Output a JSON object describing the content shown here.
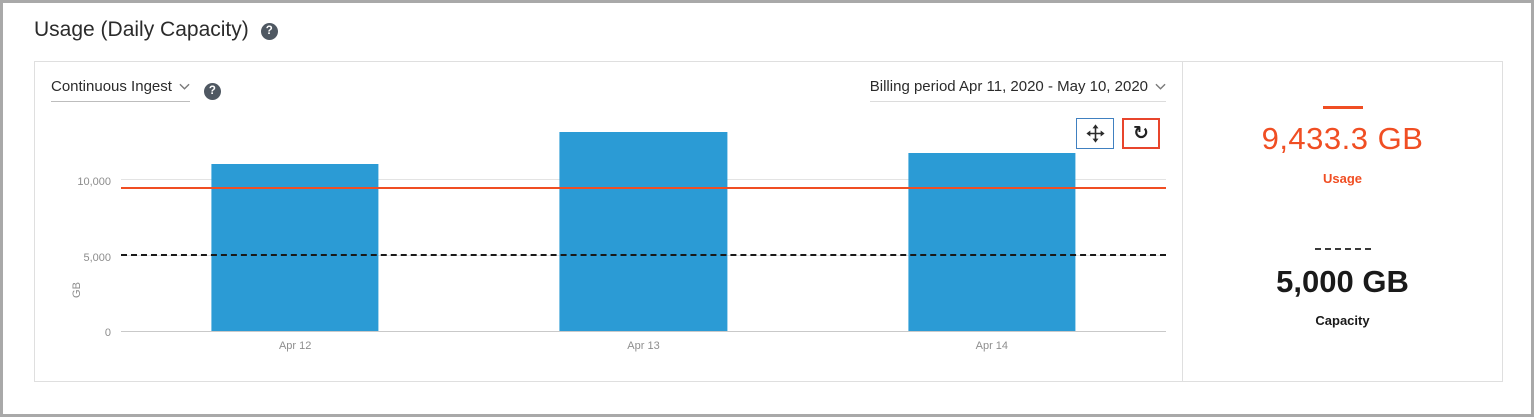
{
  "page": {
    "title": "Usage (Daily Capacity)"
  },
  "chart_panel": {
    "ingest_dropdown": "Continuous Ingest",
    "billing_dropdown": "Billing period Apr 11, 2020 - May 10, 2020"
  },
  "icons": {
    "help": "?",
    "refresh": "↻"
  },
  "summary": {
    "usage_value": "9,433.3 GB",
    "usage_label": "Usage",
    "capacity_value": "5,000 GB",
    "capacity_label": "Capacity"
  },
  "colors": {
    "bar": "#2B9BD5",
    "usage": "#F04E23",
    "capacity": "#1A1A1A",
    "pan_border": "#4080C0",
    "refresh_border": "#E8452C"
  },
  "chart_data": {
    "type": "bar",
    "categories": [
      "Apr 12",
      "Apr 13",
      "Apr 14"
    ],
    "values": [
      11100,
      13200,
      11800
    ],
    "xlabel": "",
    "ylabel": "GB",
    "ylim": [
      0,
      14000
    ],
    "yticks": [
      0,
      5000,
      10000
    ],
    "ytick_labels": [
      "0",
      "5,000",
      "10,000"
    ],
    "grid": "horizontal",
    "legend": "none",
    "reference_lines": [
      {
        "name": "Usage",
        "value": 9433.3,
        "style": "solid",
        "color": "#F04E23"
      },
      {
        "name": "Capacity",
        "value": 5000,
        "style": "dashed",
        "color": "#1A1A1A"
      }
    ]
  }
}
